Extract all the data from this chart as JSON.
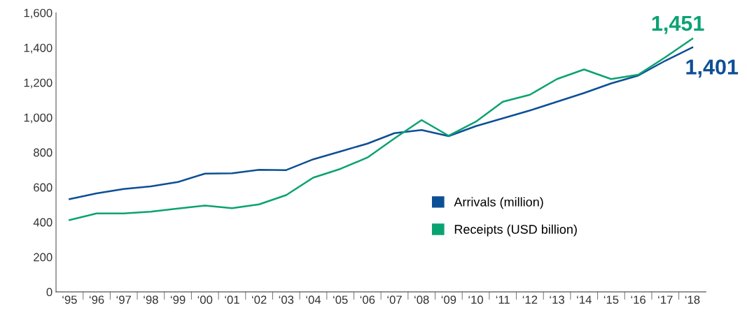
{
  "chart_data": {
    "type": "line",
    "categories": [
      "‘95",
      "‘96",
      "‘97",
      "‘98",
      "‘99",
      "‘00",
      "‘01",
      "‘02",
      "‘03",
      "‘04",
      "‘05",
      "‘06",
      "‘07",
      "‘08",
      "‘09",
      "‘10",
      "‘11",
      "‘12",
      "‘13",
      "‘14",
      "‘15",
      "‘16",
      "‘17",
      "‘18"
    ],
    "series": [
      {
        "name": "Arrivals (million)",
        "color": "#0d4f96",
        "values": [
          532,
          565,
          590,
          605,
          630,
          678,
          680,
          700,
          698,
          760,
          805,
          850,
          910,
          928,
          893,
          950,
          995,
          1040,
          1090,
          1140,
          1195,
          1240,
          1325,
          1401
        ]
      },
      {
        "name": "Receipts (USD billion)",
        "color": "#0ba272",
        "values": [
          412,
          450,
          450,
          460,
          478,
          495,
          480,
          502,
          555,
          655,
          705,
          770,
          880,
          985,
          895,
          975,
          1090,
          1130,
          1220,
          1275,
          1220,
          1245,
          1345,
          1451
        ]
      }
    ],
    "ylim": [
      0,
      1600
    ],
    "yticks": [
      0,
      {
        "value": 200,
        "label": "200"
      },
      {
        "value": 400,
        "label": "400"
      },
      {
        "value": 600,
        "label": "600"
      },
      {
        "value": 800,
        "label": "800"
      },
      {
        "value": 1000,
        "label": "1,000"
      },
      {
        "value": 1200,
        "label": "1,200"
      },
      {
        "value": 1400,
        "label": "1,400"
      },
      {
        "value": 1600,
        "label": "1,600"
      }
    ],
    "annotations": [
      {
        "text": "1,451",
        "x": "‘18",
        "y": 1451
      },
      {
        "text": "1,401",
        "x": "‘18",
        "y": 1401
      }
    ],
    "legend": "right",
    "grid": false,
    "marker": "none",
    "line_style": "solid"
  }
}
